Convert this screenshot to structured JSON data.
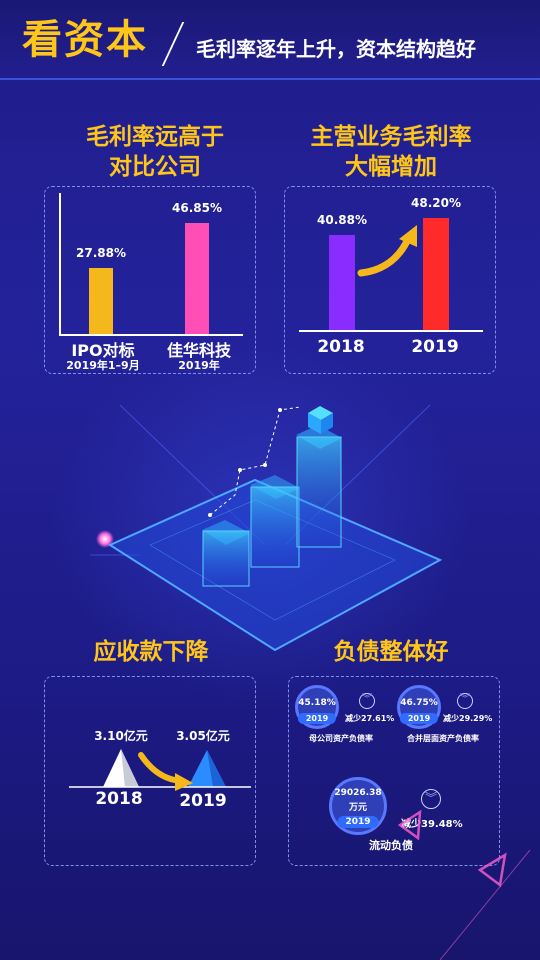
{
  "header": {
    "title": "看资本",
    "subtitle": "毛利率逐年上升，资本结构趋好"
  },
  "gross_margin": {
    "title_line1": "毛利率远高于",
    "title_line2": "对比公司",
    "bars": [
      {
        "value": 27.88,
        "value_label": "27.88%",
        "label": "IPO对标",
        "sublabel": "2019年1–9月",
        "color": "#f5b81c"
      },
      {
        "value": 46.85,
        "value_label": "46.85%",
        "label": "佳华科技",
        "sublabel": "2019年",
        "color": "#ff4fb6"
      }
    ]
  },
  "main_margin": {
    "title_line1": "主营业务毛利率",
    "title_line2": "大幅增加",
    "bars": [
      {
        "value": 40.88,
        "value_label": "40.88%",
        "label": "2018",
        "color": "#8a2bff"
      },
      {
        "value": 48.2,
        "value_label": "48.20%",
        "label": "2019",
        "color": "#ff2a2a"
      }
    ]
  },
  "receivables": {
    "title": "应收款下降",
    "items": [
      {
        "value": 3.1,
        "value_label": "3.10亿元",
        "label": "2018",
        "color": "#ffffff"
      },
      {
        "value": 3.05,
        "value_label": "3.05亿元",
        "label": "2019",
        "color": "#2a8cff"
      }
    ]
  },
  "liabilities": {
    "title": "负债整体好",
    "items": [
      {
        "pct": "45.18%",
        "year": "2019",
        "change": "减少27.61%",
        "caption": "母公司资产负债率"
      },
      {
        "pct": "46.75%",
        "year": "2019",
        "change": "减少29.29%",
        "caption": "合并层面资产负债率"
      }
    ],
    "current": {
      "amount": "29026.38",
      "unit": "万元",
      "year": "2019",
      "change": "减少39.48%",
      "caption": "流动负债"
    }
  }
}
